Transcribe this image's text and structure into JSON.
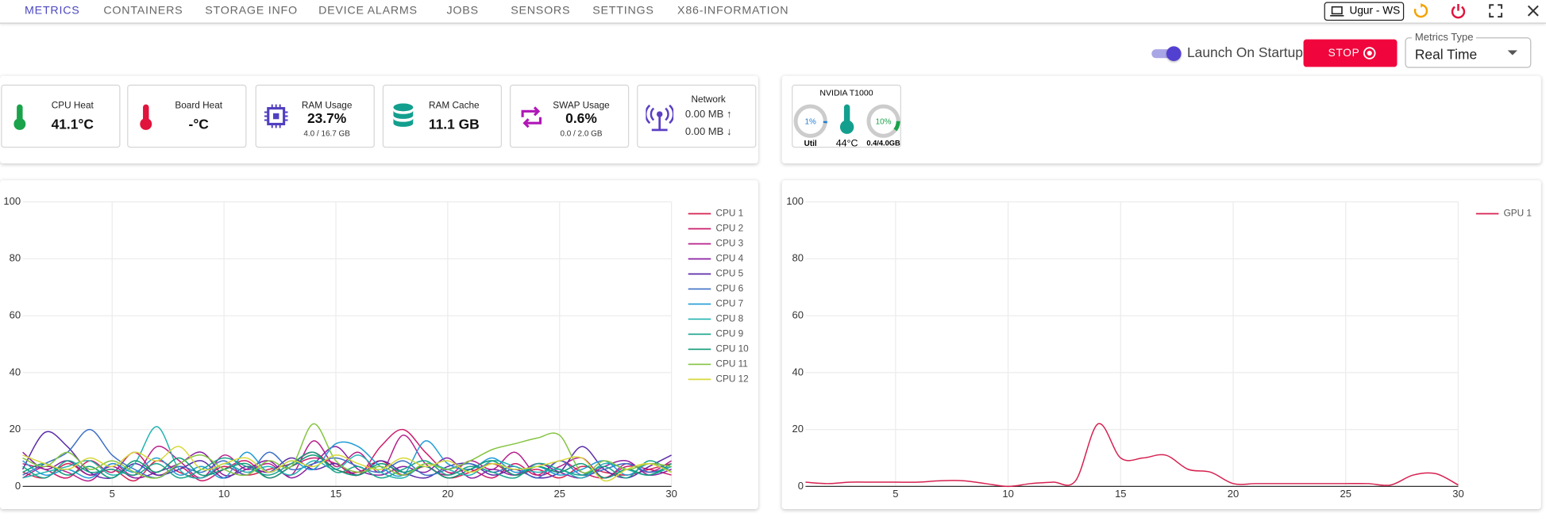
{
  "nav": {
    "items": [
      "METRICS",
      "CONTAINERS",
      "STORAGE INFO",
      "DEVICE ALARMS",
      "JOBS",
      "SENSORS",
      "SETTINGS",
      "X86-INFORMATION"
    ],
    "device": "Ugur - WS"
  },
  "controls": {
    "launch_on_startup": "Launch On Startup",
    "stop": "STOP",
    "metrics_type_label": "Metrics Type",
    "metrics_type": "Real Time"
  },
  "cards": [
    {
      "title": "CPU Heat",
      "value": "41.1°C"
    },
    {
      "title": "Board Heat",
      "value": "-°C"
    },
    {
      "title": "RAM Usage",
      "value": "23.7%",
      "detail": "4.0 / 16.7 GB"
    },
    {
      "title": "RAM Cache",
      "value": "11.1 GB"
    },
    {
      "title": "SWAP Usage",
      "value": "0.6%",
      "detail": "0.0 / 2.0 GB"
    },
    {
      "title": "Network",
      "upload": "0.00 MB ↑",
      "download": "0.00 MB ↓"
    }
  ],
  "gpu_card": {
    "name": "NVIDIA T1000",
    "util": "1%",
    "util_label": "Util",
    "temperature": "44°C",
    "memory": "10%",
    "memory_detail": "0.4/4.0GB"
  },
  "chart_data": [
    {
      "type": "line",
      "x": [
        1,
        2,
        3,
        4,
        5,
        6,
        7,
        8,
        9,
        10,
        11,
        12,
        13,
        14,
        15,
        16,
        17,
        18,
        19,
        20,
        21,
        22,
        23,
        24,
        25,
        26,
        27,
        28,
        29,
        30
      ],
      "xlim": [
        1,
        30
      ],
      "ylim": [
        0,
        100
      ],
      "xticks": [
        5,
        10,
        15,
        20,
        25,
        30
      ],
      "yticks": [
        0,
        20,
        40,
        60,
        80,
        100
      ],
      "grid": true,
      "legend": "top-right",
      "series": [
        {
          "name": "CPU 1",
          "color": "#d6204f",
          "values": [
            5,
            3,
            8,
            4,
            6,
            2,
            9,
            5,
            3,
            7,
            4,
            6,
            8,
            12,
            6,
            5,
            9,
            4,
            7,
            3,
            5,
            8,
            4,
            6,
            3,
            7,
            5,
            4,
            6,
            8
          ]
        },
        {
          "name": "CPU 2",
          "color": "#cc1b6a",
          "values": [
            8,
            6,
            3,
            9,
            5,
            12,
            4,
            7,
            2,
            6,
            9,
            3,
            7,
            10,
            8,
            4,
            14,
            20,
            12,
            5,
            6,
            3,
            8,
            4,
            9,
            5,
            3,
            7,
            6,
            4
          ]
        },
        {
          "name": "CPU 3",
          "color": "#b61e8a",
          "values": [
            3,
            7,
            5,
            2,
            8,
            4,
            14,
            9,
            3,
            11,
            6,
            8,
            4,
            16,
            7,
            12,
            5,
            18,
            8,
            4,
            9,
            6,
            12,
            4,
            7,
            10,
            3,
            8,
            5,
            9
          ]
        },
        {
          "name": "CPU 4",
          "color": "#8a1fa0",
          "values": [
            12,
            6,
            9,
            4,
            7,
            3,
            5,
            8,
            12,
            4,
            6,
            9,
            3,
            8,
            14,
            6,
            4,
            7,
            5,
            10,
            3,
            6,
            4,
            8,
            5,
            3,
            7,
            9,
            4,
            6
          ]
        },
        {
          "name": "CPU 5",
          "color": "#5a2ba8",
          "values": [
            6,
            19,
            14,
            5,
            3,
            8,
            4,
            6,
            9,
            3,
            7,
            5,
            10,
            6,
            8,
            4,
            9,
            5,
            3,
            7,
            8,
            4,
            6,
            3,
            5,
            14,
            6,
            3,
            7,
            11
          ]
        },
        {
          "name": "CPU 6",
          "color": "#3b6fc6",
          "values": [
            4,
            8,
            12,
            20,
            11,
            6,
            3,
            7,
            5,
            9,
            4,
            12,
            6,
            8,
            10,
            7,
            5,
            9,
            4,
            6,
            8,
            5,
            7,
            3,
            9,
            4,
            6,
            8,
            5,
            7
          ]
        },
        {
          "name": "CPU 7",
          "color": "#1f9bd6",
          "values": [
            9,
            4,
            6,
            3,
            8,
            5,
            10,
            4,
            7,
            3,
            12,
            5,
            9,
            6,
            15,
            14,
            7,
            4,
            16,
            8,
            6,
            10,
            5,
            7,
            4,
            6,
            9,
            4,
            8,
            5
          ]
        },
        {
          "name": "CPU 8",
          "color": "#22b3b0",
          "values": [
            3,
            5,
            7,
            9,
            4,
            8,
            21,
            6,
            3,
            8,
            5,
            7,
            4,
            9,
            6,
            11,
            5,
            3,
            8,
            6,
            4,
            9,
            7,
            5,
            6,
            3,
            8,
            6,
            4,
            7
          ]
        },
        {
          "name": "CPU 9",
          "color": "#17a38a",
          "values": [
            7,
            3,
            9,
            5,
            6,
            4,
            8,
            3,
            6,
            10,
            7,
            4,
            8,
            12,
            5,
            7,
            3,
            6,
            9,
            4,
            7,
            5,
            3,
            8,
            6,
            4,
            7,
            3,
            9,
            5
          ]
        },
        {
          "name": "CPU 10",
          "color": "#0e9a78",
          "values": [
            5,
            8,
            4,
            7,
            3,
            9,
            5,
            10,
            4,
            6,
            8,
            3,
            7,
            11,
            6,
            4,
            8,
            5,
            7,
            3,
            6,
            9,
            4,
            7,
            5,
            8,
            3,
            6,
            4,
            8
          ]
        },
        {
          "name": "CPU 11",
          "color": "#84c441",
          "values": [
            10,
            7,
            12,
            6,
            9,
            5,
            3,
            8,
            11,
            6,
            4,
            9,
            7,
            22,
            9,
            5,
            7,
            4,
            8,
            6,
            9,
            13,
            15,
            17,
            18,
            5,
            9,
            6,
            8,
            7
          ]
        },
        {
          "name": "CPU 12",
          "color": "#d8d83a",
          "values": [
            11,
            8,
            6,
            10,
            7,
            12,
            9,
            14,
            6,
            8,
            10,
            5,
            9,
            7,
            11,
            8,
            6,
            10,
            7,
            9,
            5,
            8,
            6,
            7,
            9,
            10,
            2,
            6,
            8,
            5
          ]
        }
      ]
    },
    {
      "type": "line",
      "x": [
        1,
        2,
        3,
        4,
        5,
        6,
        7,
        8,
        9,
        10,
        11,
        12,
        13,
        14,
        15,
        16,
        17,
        18,
        19,
        20,
        21,
        22,
        23,
        24,
        25,
        26,
        27,
        28,
        29,
        30
      ],
      "xlim": [
        1,
        30
      ],
      "ylim": [
        0,
        100
      ],
      "xticks": [
        5,
        10,
        15,
        20,
        25,
        30
      ],
      "yticks": [
        0,
        20,
        40,
        60,
        80,
        100
      ],
      "grid": true,
      "legend": "top-right",
      "series": [
        {
          "name": "GPU 1",
          "color": "#d6204f",
          "values": [
            1.5,
            1,
            1.5,
            1.5,
            1.5,
            1.5,
            2,
            2,
            1,
            0,
            1,
            1.5,
            2,
            22,
            10,
            10,
            11,
            6,
            5,
            1,
            1,
            1,
            1,
            1,
            1,
            1,
            0.5,
            4,
            4.5,
            0.5
          ]
        }
      ]
    }
  ]
}
